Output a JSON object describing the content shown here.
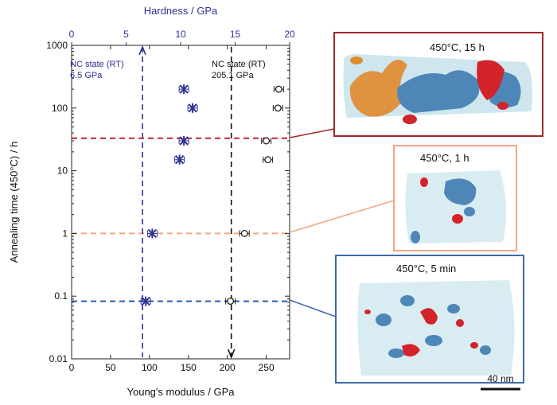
{
  "chart_data": {
    "type": "scatter",
    "xlabel": "Young's modulus / GPa",
    "x2label": "Hardness / GPa",
    "ylabel": "Annealing time (450°C) / h",
    "xlim": [
      0,
      280
    ],
    "x2lim": [
      0,
      20
    ],
    "ylim": [
      0.01,
      1000
    ],
    "y_scale": "log",
    "x_ticks": [
      "0",
      "50",
      "100",
      "150",
      "200",
      "250"
    ],
    "x2_ticks": [
      "0",
      "5",
      "10",
      "15",
      "20"
    ],
    "y_ticks": [
      "0.01",
      "0.1",
      "1",
      "10",
      "100",
      "1000"
    ],
    "grid": false,
    "series": [
      {
        "axis": "top",
        "color": "#2e3192",
        "marker": "asterisk-with-errorbar",
        "points": [
          {
            "x": 10.3,
            "y": 200
          },
          {
            "x": 10.3,
            "y": 30
          },
          {
            "x": 11.1,
            "y": 100
          },
          {
            "x": 9.9,
            "y": 15
          },
          {
            "x": 7.4,
            "y": 1
          },
          {
            "x": 6.8,
            "y": 0.083
          }
        ]
      },
      {
        "axis": "bottom",
        "color": "#222222",
        "marker": "circle-with-errorbar",
        "points": [
          {
            "x": 266,
            "y": 200
          },
          {
            "x": 265,
            "y": 100
          },
          {
            "x": 250,
            "y": 30
          },
          {
            "x": 252,
            "y": 15
          },
          {
            "x": 222,
            "y": 1
          },
          {
            "x": 204,
            "y": 0.083
          }
        ]
      }
    ],
    "annotations": [
      {
        "line1": "NC state (RT)",
        "line2": "6.5 GPa",
        "color": "#2e3192",
        "axis": "top",
        "value": 6.5
      },
      {
        "line1": "NC state (RT)",
        "line2": "205.1 GPa",
        "color": "#111111",
        "axis": "bottom",
        "value": 205.1
      }
    ],
    "reference_lines": [
      {
        "y": 33,
        "color": "#c1272d"
      },
      {
        "y": 1,
        "color": "#f4a582"
      },
      {
        "y": 0.083,
        "color": "#2b5ba8"
      }
    ]
  },
  "panels": [
    {
      "title": "450°C, 15 h",
      "border": "#a3262a"
    },
    {
      "title": "450°C, 1 h",
      "border": "#f4a582"
    },
    {
      "title": "450°C, 5 min",
      "border": "#3d6aa8"
    }
  ],
  "scale_bar": {
    "label": "40 nm"
  }
}
